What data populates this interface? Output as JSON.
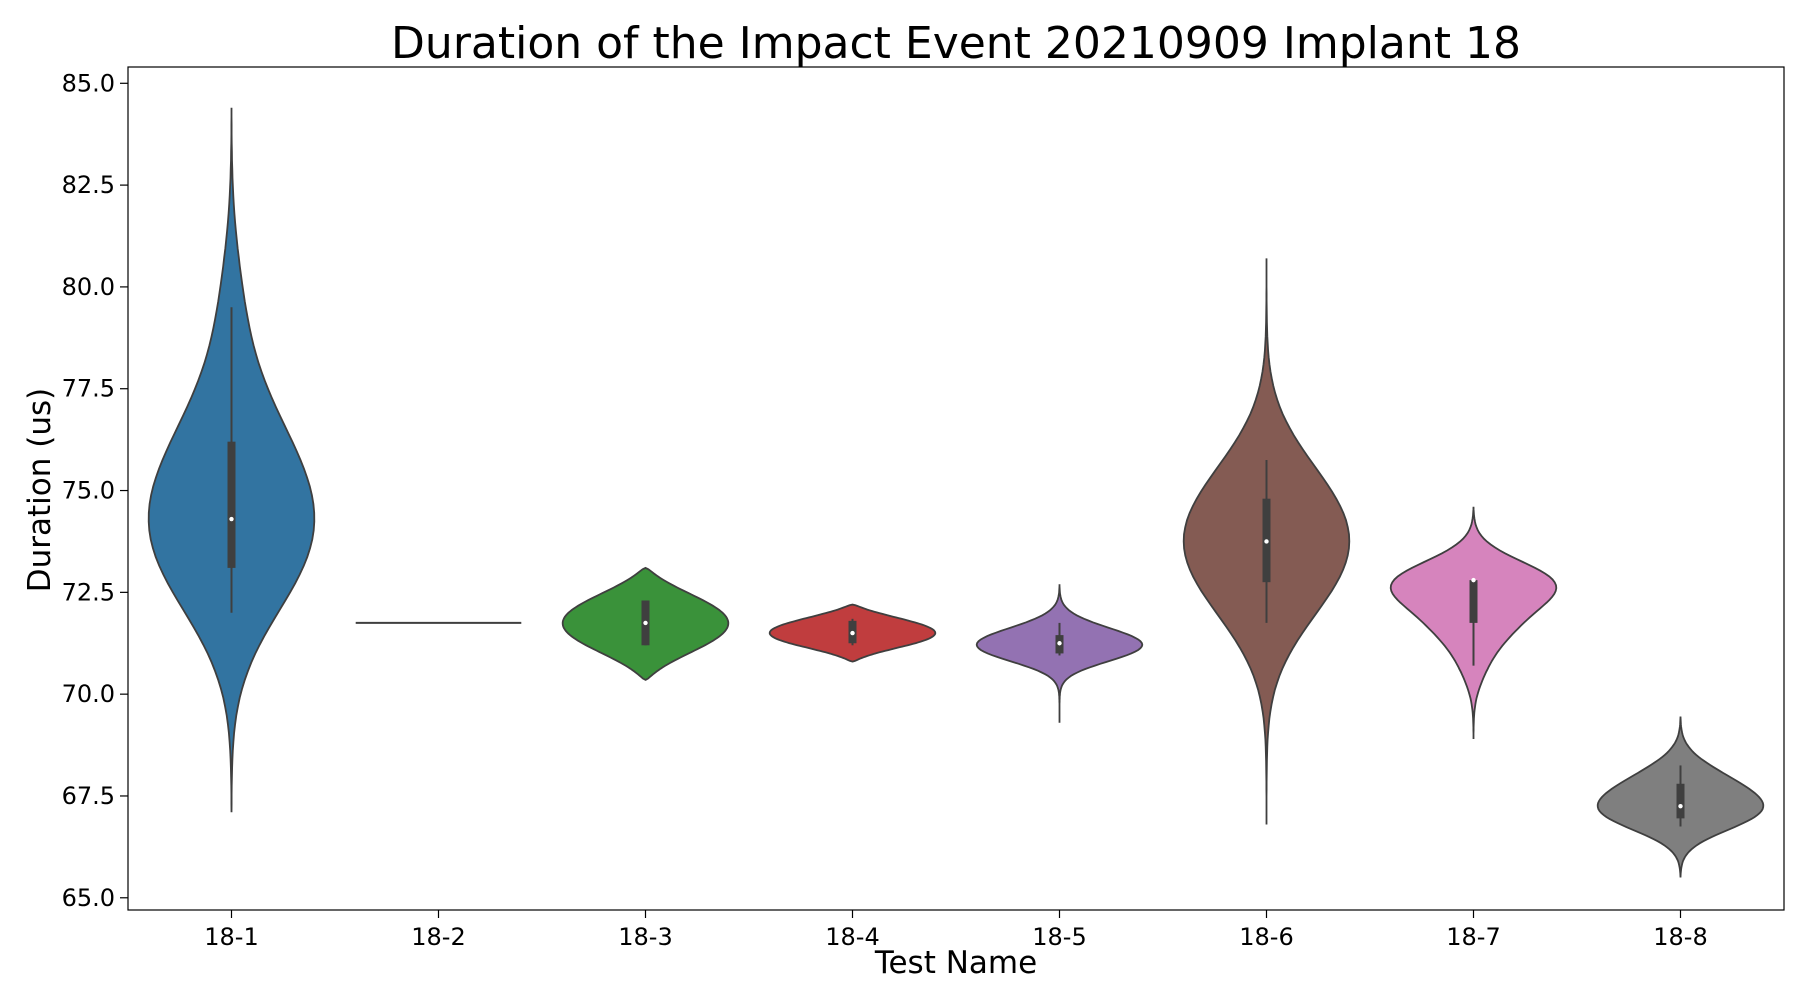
{
  "chart_data": {
    "type": "violin",
    "title": "Duration of the Impact Event 20210909 Implant 18",
    "xlabel": "Test Name",
    "ylabel": "Duration (us)",
    "ylim": [
      64.7,
      85.4
    ],
    "yticks": [
      "65.0",
      "67.5",
      "70.0",
      "72.5",
      "75.0",
      "77.5",
      "80.0",
      "82.5",
      "85.0"
    ],
    "grid": false,
    "legend": "none",
    "categories": [
      "18-1",
      "18-2",
      "18-3",
      "18-4",
      "18-5",
      "18-6",
      "18-7",
      "18-8"
    ],
    "series": [
      {
        "category": "18-1",
        "color": "#3274a1",
        "min": 72.0,
        "q1": 73.1,
        "median": 74.3,
        "q3": 76.2,
        "max": 79.5,
        "kde_low": 67.1,
        "kde_high": 84.4
      },
      {
        "category": "18-2",
        "color": "#3a923a",
        "min": 71.75,
        "q1": 71.75,
        "median": 71.75,
        "q3": 71.75,
        "max": 71.75,
        "kde_low": 71.75,
        "kde_high": 71.75
      },
      {
        "category": "18-3",
        "color": "#3a923a",
        "min": 71.2,
        "q1": 71.2,
        "median": 71.75,
        "q3": 72.3,
        "max": 72.3,
        "kde_low": 70.35,
        "kde_high": 73.1
      },
      {
        "category": "18-4",
        "color": "#c03d3e",
        "min": 71.2,
        "q1": 71.25,
        "median": 71.5,
        "q3": 71.8,
        "max": 71.85,
        "kde_low": 70.8,
        "kde_high": 72.2
      },
      {
        "category": "18-5",
        "color": "#9372b2",
        "min": 70.95,
        "q1": 71.0,
        "median": 71.25,
        "q3": 71.45,
        "max": 71.75,
        "kde_low": 69.3,
        "kde_high": 72.7
      },
      {
        "category": "18-6",
        "color": "#845b53",
        "min": 71.75,
        "q1": 72.75,
        "median": 73.75,
        "q3": 74.8,
        "max": 75.75,
        "kde_low": 66.8,
        "kde_high": 80.7
      },
      {
        "category": "18-7",
        "color": "#d684bd",
        "min": 70.7,
        "q1": 71.75,
        "median": 72.8,
        "q3": 72.8,
        "max": 72.8,
        "kde_low": 68.9,
        "kde_high": 74.6
      },
      {
        "category": "18-8",
        "color": "#7f7f7f",
        "min": 66.75,
        "q1": 66.95,
        "median": 67.25,
        "q3": 67.8,
        "max": 68.25,
        "kde_low": 65.5,
        "kde_high": 69.45
      }
    ]
  }
}
